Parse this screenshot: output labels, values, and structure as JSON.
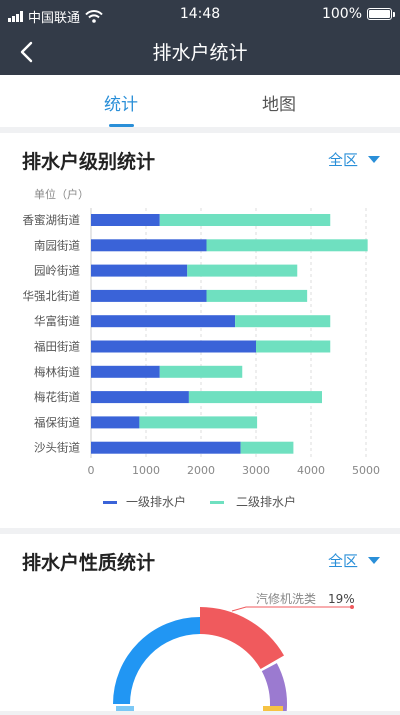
{
  "statusbar": {
    "carrier": "中国联通",
    "time": "14:48",
    "battery": "100%"
  },
  "navbar": {
    "title": "排水户统计"
  },
  "tabs": [
    {
      "label": "统计",
      "active": true
    },
    {
      "label": "地图",
      "active": false
    }
  ],
  "card1": {
    "title": "排水户级别统计",
    "filter_label": "全区"
  },
  "card2": {
    "title": "排水户性质统计",
    "filter_label": "全区"
  },
  "colors": {
    "primary_blue": "#2a8fd8",
    "series1": "#3a63d8",
    "series2": "#6fe0c0",
    "donut_blue": "#2196f3",
    "donut_red": "#f05a5d",
    "donut_purple": "#9b7ad0",
    "donut_yellow": "#f6c343"
  },
  "chart_data": [
    {
      "type": "bar",
      "orientation": "horizontal",
      "stacked": true,
      "ylabel": "单位（户）",
      "categories": [
        "香蜜湖街道",
        "南园街道",
        "园岭街道",
        "华强北街道",
        "华富街道",
        "福田街道",
        "梅林街道",
        "梅花街道",
        "福保街道",
        "沙头街道"
      ],
      "series": [
        {
          "name": "一级排水户",
          "values": [
            1250,
            2100,
            1750,
            2100,
            2620,
            3000,
            1250,
            1780,
            880,
            2720
          ]
        },
        {
          "name": "二级排水户",
          "values": [
            3100,
            2930,
            2000,
            1830,
            1730,
            1350,
            1500,
            2420,
            2140,
            960
          ]
        }
      ],
      "xlim": [
        0,
        5000
      ],
      "xticks": [
        0,
        1000,
        2000,
        3000,
        4000,
        5000
      ],
      "grid": true,
      "legend": "bottom"
    },
    {
      "type": "pie",
      "style": "donut",
      "annotations": [
        {
          "label": "汽修机洗类",
          "value": "19%"
        }
      ],
      "slices": [
        {
          "value": 45,
          "color": "#2196f3"
        },
        {
          "value": 19,
          "color": "#f05a5d"
        },
        {
          "value": 11,
          "color": "#9b7ad0"
        }
      ]
    }
  ]
}
